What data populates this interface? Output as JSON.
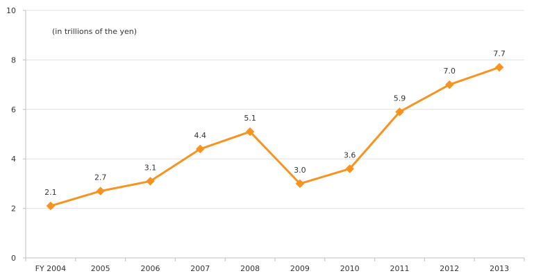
{
  "chart_data": {
    "type": "line",
    "unit_note": "(in trillions of the yen)",
    "categories": [
      "FY 2004",
      "2005",
      "2006",
      "2007",
      "2008",
      "2009",
      "2010",
      "2011",
      "2012",
      "2013"
    ],
    "series": [
      {
        "values": [
          2.1,
          2.7,
          3.1,
          4.4,
          5.1,
          3.0,
          3.6,
          5.9,
          7.0,
          7.7
        ],
        "labels": [
          "2.1",
          "2.7",
          "3.1",
          "4.4",
          "5.1",
          "3.0",
          "3.6",
          "5.9",
          "7.0",
          "7.7"
        ],
        "color": "#F7931E",
        "marker": "diamond"
      }
    ],
    "ylim": [
      0,
      10
    ],
    "yticks": [
      "0",
      "2",
      "4",
      "6",
      "8",
      "10"
    ],
    "grid": true,
    "grid_color": "#E0E0E0",
    "axis_color": "#BFBFBF"
  }
}
